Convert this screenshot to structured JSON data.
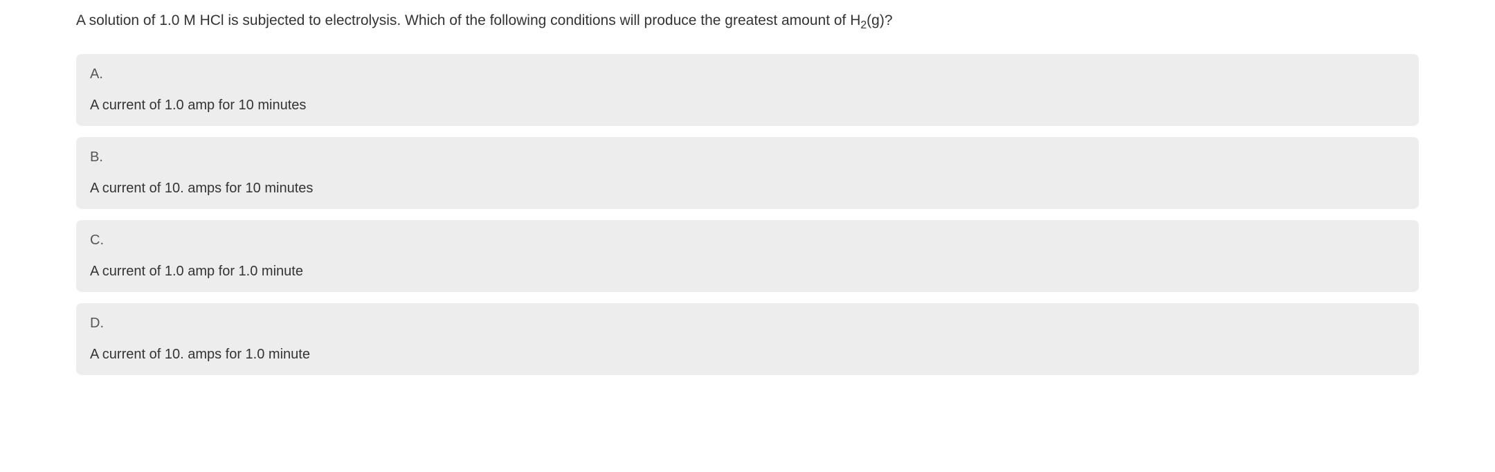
{
  "question": {
    "text_before_formula": "A solution of 1.0 M HCl is subjected to electrolysis.  Which of the following conditions will produce the greatest amount of H",
    "subscript": "2",
    "text_after_formula": "(g)?",
    "text_color": "#333333",
    "font_size": 21
  },
  "options": [
    {
      "letter": "A.",
      "text": "A current of 1.0 amp for 10 minutes"
    },
    {
      "letter": "B.",
      "text": "A current of 10. amps for 10 minutes"
    },
    {
      "letter": "C.",
      "text": "A current of 1.0 amp for 1.0 minute"
    },
    {
      "letter": "D.",
      "text": "A current of 10. amps for 1.0 minute"
    }
  ],
  "styling": {
    "background_color": "#ffffff",
    "option_background": "#ededed",
    "option_border_radius": 8,
    "option_text_color": "#333333",
    "option_letter_color": "#555555",
    "option_font_size": 20
  }
}
